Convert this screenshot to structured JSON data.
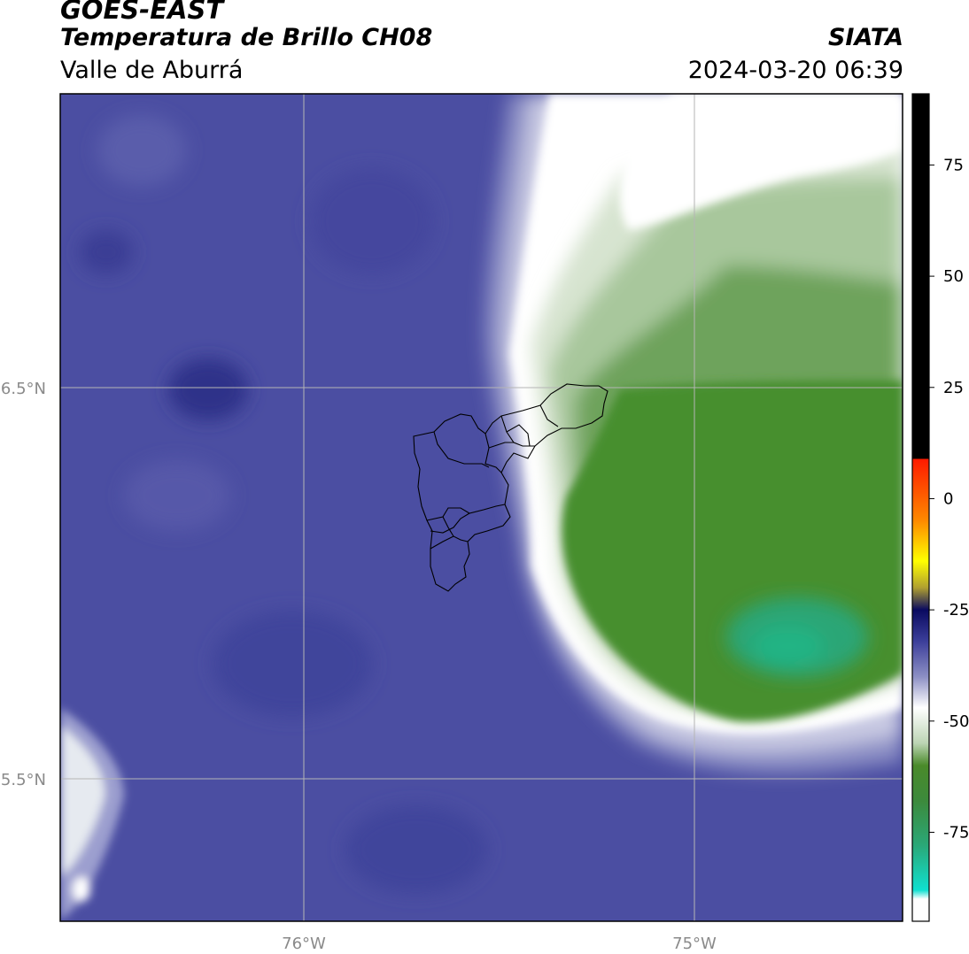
{
  "header": {
    "satellite": "GOES-EAST",
    "product": "Temperatura de Brillo CH08",
    "region": "Valle de Aburrá",
    "organization": "SIATA",
    "datetime": "2024-03-20 06:39"
  },
  "map": {
    "lat_labels": [
      "6.5°N",
      "5.5°N"
    ],
    "lon_labels": [
      "76°W",
      "75°W"
    ],
    "colors": {
      "background_blue": "#4b4ea2",
      "dark_blue": "#34388d",
      "light_band": "#f4f4f8",
      "pale_green": "#cfe0c8",
      "green": "#468f2e",
      "teal": "#27a87a",
      "outline": "#000000",
      "gridline": "#b5b5b5",
      "tick_label": "#8a8a8a"
    }
  },
  "colorbar": {
    "tick_labels": [
      "75",
      "50",
      "25",
      "0",
      "-25",
      "-50",
      "-75"
    ],
    "tick_values": [
      75,
      50,
      25,
      0,
      -25,
      -50,
      -75
    ],
    "range": [
      -95,
      91
    ],
    "stops": [
      {
        "value": 91,
        "color": "#000000"
      },
      {
        "value": 9,
        "color": "#000000"
      },
      {
        "value": 8.9,
        "color": "#ff1a00"
      },
      {
        "value": -5,
        "color": "#ff8a00"
      },
      {
        "value": -14,
        "color": "#ffff00"
      },
      {
        "value": -20,
        "color": "#b0a030"
      },
      {
        "value": -25,
        "color": "#0a0a60"
      },
      {
        "value": -32,
        "color": "#3b3e9a"
      },
      {
        "value": -40,
        "color": "#8c8fc4"
      },
      {
        "value": -47,
        "color": "#ffffff"
      },
      {
        "value": -55,
        "color": "#bcd4b4"
      },
      {
        "value": -60,
        "color": "#4a8a2a"
      },
      {
        "value": -68,
        "color": "#3c8a3c"
      },
      {
        "value": -78,
        "color": "#2aa878"
      },
      {
        "value": -88,
        "color": "#10e0d0"
      },
      {
        "value": -90,
        "color": "#ffffff"
      },
      {
        "value": -95,
        "color": "#ffffff"
      }
    ]
  }
}
